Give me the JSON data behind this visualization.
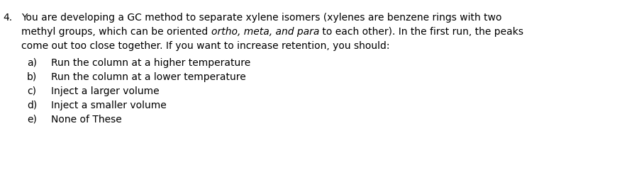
{
  "background_color": "#ffffff",
  "question_number": "4.",
  "question_text_line1": "You are developing a GC method to separate xylene isomers (xylenes are benzene rings with two",
  "question_text_line2_before_italic": "methyl groups, which can be oriented ",
  "question_text_line2_italic": "ortho, meta, and para",
  "question_text_line2_after_italic": " to each other). In the first run, the peaks",
  "question_text_line3": "come out too close together. If you want to increase retention, you should:",
  "choices": [
    {
      "label": "a)",
      "text": "Run the column at a higher temperature"
    },
    {
      "label": "b)",
      "text": "Run the column at a lower temperature"
    },
    {
      "label": "c)",
      "text": "Inject a larger volume"
    },
    {
      "label": "d)",
      "text": "Inject a smaller volume"
    },
    {
      "label": "e)",
      "text": "None of These"
    }
  ],
  "font_size": 10.0,
  "text_color": "#000000",
  "font_family": "DejaVu Sans",
  "figwidth": 9.01,
  "figheight": 2.67,
  "dpi": 100
}
